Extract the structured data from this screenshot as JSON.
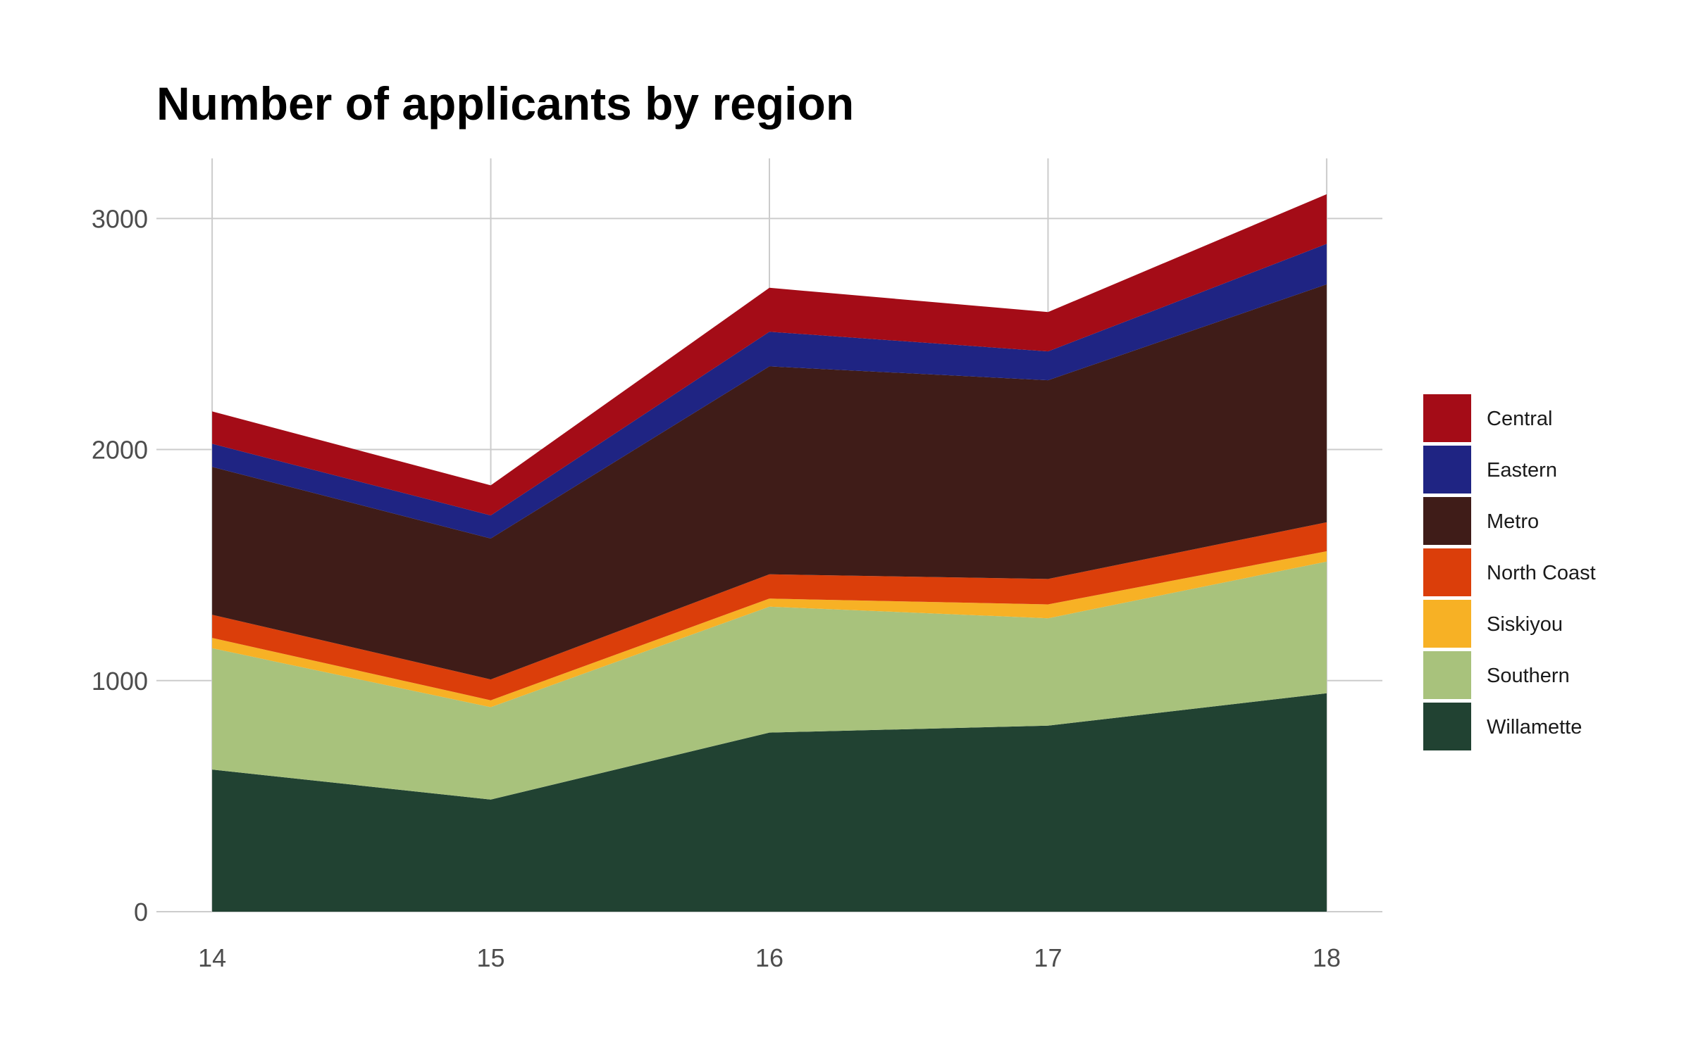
{
  "chart_data": {
    "type": "area",
    "stacked": true,
    "title": "Number of applicants by region",
    "xlabel": "",
    "ylabel": "",
    "x": [
      14,
      15,
      16,
      17,
      18
    ],
    "x_tick_labels": [
      "14",
      "15",
      "16",
      "17",
      "18"
    ],
    "y_ticks": [
      0,
      1000,
      2000,
      3000
    ],
    "y_tick_labels": [
      "0",
      "1000",
      "2000",
      "3000"
    ],
    "xlim": [
      13.8,
      18.2
    ],
    "ylim": [
      0,
      3260
    ],
    "grid": true,
    "legend_position": "right",
    "series": [
      {
        "name": "Willamette",
        "color": "#214232",
        "values": [
          615,
          485,
          775,
          805,
          945
        ]
      },
      {
        "name": "Southern",
        "color": "#a8c27c",
        "values": [
          525,
          400,
          545,
          465,
          570
        ]
      },
      {
        "name": "Siskiyou",
        "color": "#f7b125",
        "values": [
          45,
          30,
          35,
          60,
          45
        ]
      },
      {
        "name": "North Coast",
        "color": "#db3e0a",
        "values": [
          100,
          90,
          105,
          110,
          125
        ]
      },
      {
        "name": "Metro",
        "color": "#3f1c18",
        "values": [
          640,
          610,
          900,
          860,
          1030
        ]
      },
      {
        "name": "Eastern",
        "color": "#1f2483",
        "values": [
          100,
          100,
          150,
          125,
          175
        ]
      },
      {
        "name": "Central",
        "color": "#a40c17",
        "values": [
          140,
          130,
          190,
          170,
          215
        ]
      }
    ]
  }
}
